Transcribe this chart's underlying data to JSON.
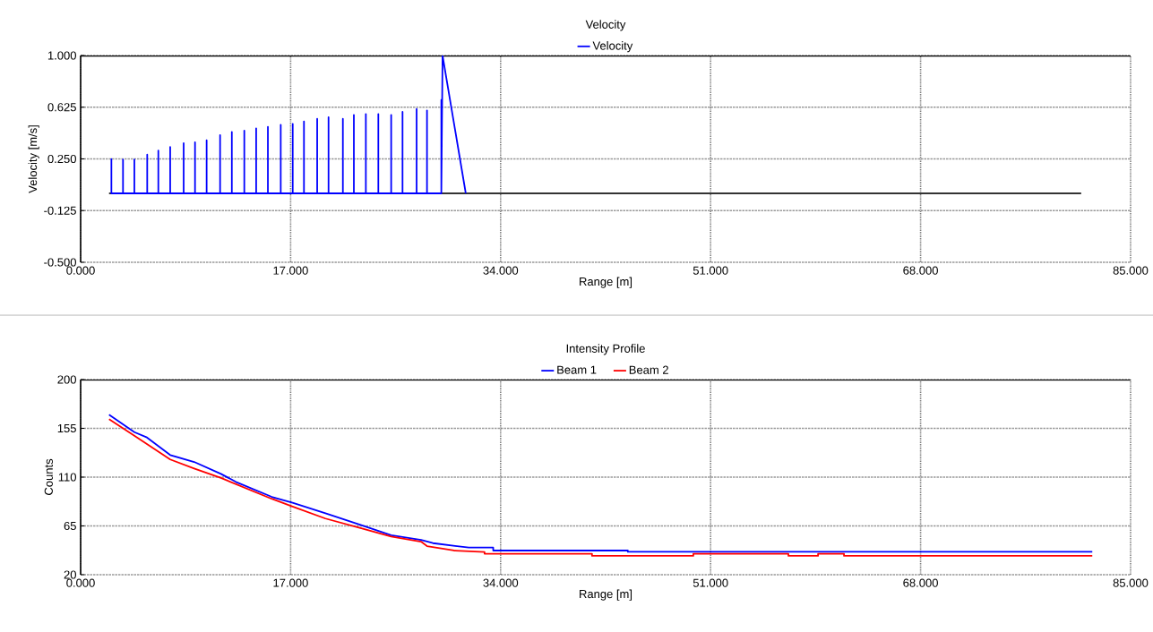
{
  "chart_data": [
    {
      "type": "line",
      "title": "Velocity",
      "xlabel": "Range [m]",
      "ylabel": "Velocity [m/s]",
      "xlim": [
        0,
        85
      ],
      "ylim": [
        -0.5,
        1.0
      ],
      "xticks": [
        {
          "value": 0,
          "label": "0.000"
        },
        {
          "value": 17,
          "label": "17.000"
        },
        {
          "value": 34,
          "label": "34.000"
        },
        {
          "value": 51,
          "label": "51.000"
        },
        {
          "value": 68,
          "label": "68.000"
        },
        {
          "value": 85,
          "label": "85.000"
        }
      ],
      "yticks": [
        {
          "value": -0.5,
          "label": "-0.500"
        },
        {
          "value": -0.125,
          "label": "-0.125"
        },
        {
          "value": 0.25,
          "label": "0.250"
        },
        {
          "value": 0.625,
          "label": "0.625"
        },
        {
          "value": 1.0,
          "label": "1.000"
        }
      ],
      "grid": true,
      "legend": "top",
      "series": [
        {
          "color": "#333333",
          "x": [
            2.3,
            81.0
          ],
          "values": [
            0,
            0
          ]
        },
        {
          "name": "Velocity",
          "color": "#0000ff",
          "x": [
            2.49,
            2.49,
            2.49,
            3.43,
            3.43,
            3.43,
            4.35,
            4.35,
            4.35,
            5.39,
            5.39,
            5.39,
            6.29,
            6.29,
            6.29,
            7.25,
            7.25,
            7.25,
            8.34,
            8.34,
            8.34,
            9.26,
            9.26,
            9.26,
            10.2,
            10.2,
            10.2,
            11.29,
            11.29,
            11.29,
            12.24,
            12.24,
            12.24,
            13.25,
            13.25,
            13.25,
            14.21,
            14.21,
            14.21,
            15.16,
            15.16,
            15.16,
            16.2,
            16.2,
            16.2,
            17.17,
            17.17,
            17.17,
            18.08,
            18.08,
            18.08,
            19.15,
            19.15,
            19.15,
            20.07,
            20.07,
            20.07,
            21.23,
            21.23,
            21.23,
            22.12,
            22.12,
            22.12,
            23.09,
            23.09,
            23.09,
            24.1,
            24.1,
            24.1,
            25.14,
            25.14,
            25.14,
            26.06,
            26.06,
            26.06,
            27.2,
            27.2,
            27.2,
            28.04,
            28.04,
            28.04,
            29.2,
            29.2,
            29.2,
            29.3,
            31.18
          ],
          "values": [
            0,
            0.249,
            0,
            0,
            0.245,
            0,
            0,
            0.245,
            0,
            0,
            0.281,
            0,
            0,
            0.31,
            0,
            0,
            0.336,
            0,
            0,
            0.364,
            0,
            0,
            0.37,
            0,
            0,
            0.385,
            0,
            0,
            0.422,
            0,
            0,
            0.446,
            0,
            0,
            0.455,
            0,
            0,
            0.472,
            0,
            0,
            0.482,
            0,
            0,
            0.498,
            0,
            0,
            0.504,
            0,
            0,
            0.522,
            0,
            0,
            0.541,
            0,
            0,
            0.552,
            0,
            0,
            0.541,
            0,
            0,
            0.569,
            0,
            0,
            0.576,
            0,
            0,
            0.576,
            0,
            0,
            0.569,
            0,
            0,
            0.591,
            0,
            0,
            0.612,
            0,
            0,
            0.602,
            0,
            0,
            0.677,
            0,
            1.0,
            0
          ]
        }
      ]
    },
    {
      "type": "line",
      "title": "Intensity Profile",
      "xlabel": "Range [m]",
      "ylabel": "Counts",
      "xlim": [
        0,
        85
      ],
      "ylim": [
        20,
        200
      ],
      "xticks": [
        {
          "value": 0,
          "label": "0.000"
        },
        {
          "value": 17,
          "label": "17.000"
        },
        {
          "value": 34,
          "label": "34.000"
        },
        {
          "value": 51,
          "label": "51.000"
        },
        {
          "value": 68,
          "label": "68.000"
        },
        {
          "value": 85,
          "label": "85.000"
        }
      ],
      "yticks": [
        20,
        65,
        110,
        155,
        200
      ],
      "grid": true,
      "legend": "top",
      "series": [
        {
          "name": "Beam 1",
          "color": "#0000ff",
          "x": [
            2.3,
            4.35,
            5.32,
            7.25,
            9.19,
            11.36,
            12.57,
            15.47,
            17.16,
            19.82,
            22.72,
            25.14,
            27.56,
            28.52,
            31.42,
            33.4,
            33.4,
            44.3,
            44.3,
            81.9
          ],
          "values": [
            167.5,
            151.5,
            146.9,
            130.4,
            124.0,
            113.0,
            105.6,
            91.8,
            86.3,
            76.7,
            65.7,
            56.5,
            52.0,
            49.1,
            45.0,
            45.0,
            42.3,
            42.3,
            41.1,
            41.1
          ]
        },
        {
          "name": "Beam 2",
          "color": "#ff0000",
          "x": [
            2.3,
            4.35,
            7.25,
            9.19,
            11.36,
            15.47,
            17.16,
            19.82,
            22.72,
            25.14,
            27.56,
            28.04,
            30.22,
            32.7,
            32.7,
            41.4,
            41.4,
            49.6,
            49.6,
            57.3,
            57.3,
            59.7,
            59.7,
            61.8,
            61.8,
            81.9
          ],
          "values": [
            163.4,
            148.2,
            126.3,
            118.0,
            109.2,
            90.0,
            82.8,
            71.8,
            62.9,
            55.2,
            50.5,
            46.4,
            42.3,
            40.9,
            39.3,
            39.3,
            37.4,
            37.4,
            39.3,
            39.3,
            37.4,
            37.4,
            39.3,
            39.3,
            37.4,
            37.4
          ]
        }
      ]
    }
  ]
}
